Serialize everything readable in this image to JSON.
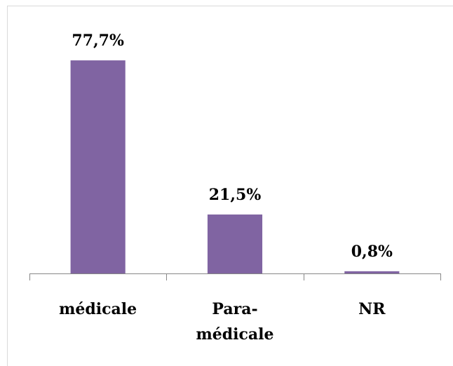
{
  "chart_data": {
    "type": "bar",
    "categories": [
      "médicale",
      "Para-\nmédicale",
      "NR"
    ],
    "values": [
      77.7,
      21.5,
      0.8
    ],
    "value_labels": [
      "77,7%",
      "21,5%",
      "0,8%"
    ],
    "color": "#8064a2",
    "ylim": [
      0,
      90
    ]
  }
}
